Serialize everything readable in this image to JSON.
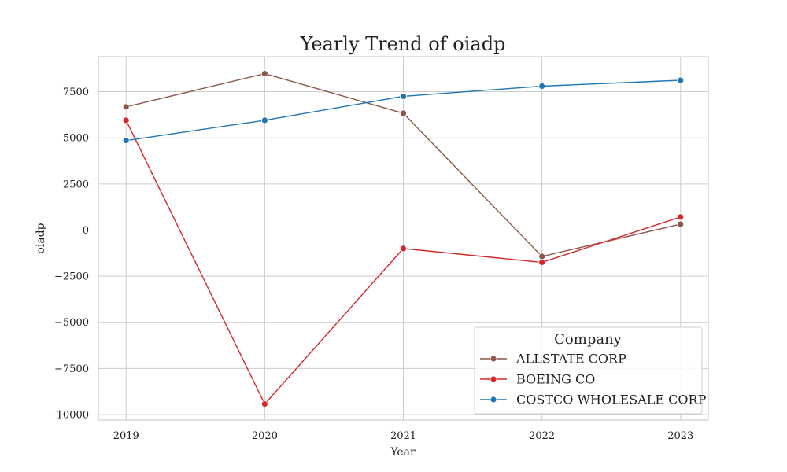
{
  "chart_data": {
    "type": "line",
    "title": "Yearly Trend of oiadp",
    "xlabel": "Year",
    "ylabel": "oiadp",
    "x": [
      2019,
      2020,
      2021,
      2022,
      2023
    ],
    "x_tick_labels": [
      "2019",
      "2020",
      "2021",
      "2022",
      "2023"
    ],
    "xlim": [
      2018.8,
      2023.2
    ],
    "ylim": [
      -10300,
      9400
    ],
    "y_ticks": [
      -10000,
      -7500,
      -5000,
      -2500,
      0,
      2500,
      5000,
      7500
    ],
    "y_tick_labels": [
      "−10000",
      "−7500",
      "−5000",
      "−2500",
      "0",
      "2500",
      "5000",
      "7500"
    ],
    "grid": true,
    "legend": {
      "title": "Company",
      "placement": "bottom-right"
    },
    "series": [
      {
        "name": "ALLSTATE CORP",
        "color": "#8c564b",
        "values": [
          6680,
          8480,
          6330,
          -1430,
          320
        ]
      },
      {
        "name": "BOEING CO",
        "color": "#d62728",
        "values": [
          5950,
          -9430,
          -1000,
          -1750,
          710
        ]
      },
      {
        "name": "COSTCO WHOLESALE CORP",
        "color": "#1f77b4",
        "values": [
          4850,
          5950,
          7250,
          7800,
          8120
        ]
      }
    ]
  }
}
